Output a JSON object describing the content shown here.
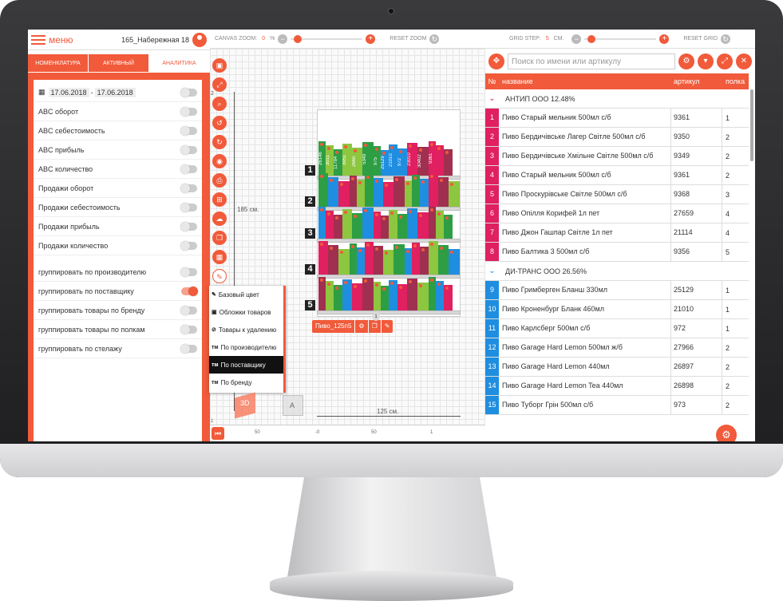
{
  "header": {
    "menu_label": "меню",
    "store_name": "165_Набережная 18"
  },
  "tabs": [
    "НОМЕНКЛАТУРА",
    "АКТИВНЫЙ",
    "АНАЛИТИКА"
  ],
  "date_from": "17.06.2018",
  "date_sep": "-",
  "date_to": "17.06.2018",
  "analytics_items": [
    {
      "label": "ABC оборот",
      "on": false
    },
    {
      "label": "ABC себестоимость",
      "on": false
    },
    {
      "label": "ABC прибыль",
      "on": false
    },
    {
      "label": "ABC количество",
      "on": false
    },
    {
      "label": "Продажи оборот",
      "on": false
    },
    {
      "label": "Продажи себестоимость",
      "on": false
    },
    {
      "label": "Продажи прибыль",
      "on": false
    },
    {
      "label": "Продажи количество",
      "on": false
    }
  ],
  "group_items": [
    {
      "label": "группировать по производителю",
      "on": false
    },
    {
      "label": "группировать по поставщику",
      "on": true
    },
    {
      "label": "группировать товары по бренду",
      "on": false
    },
    {
      "label": "группировать товары по полкам",
      "on": false
    },
    {
      "label": "группировать по стелажу",
      "on": false
    }
  ],
  "canvas": {
    "zoom_label": "CANVAS ZOOM:",
    "zoom_value": "0",
    "zoom_unit": "%",
    "reset_zoom": "RESET ZOOM",
    "height_label": "185 см.",
    "width_label": "125 см.",
    "plano_name": "Пиво_125п5",
    "badge": "1",
    "mark_2": "2"
  },
  "grid": {
    "step_label": "GRID STEP:",
    "step_value": "5",
    "step_unit": "СМ.",
    "reset_grid": "RESET GRID"
  },
  "color_menu": [
    "Базовый цвет",
    "Обложки товаров",
    "Товары к удалению",
    "По производителю",
    "По поставщику",
    "По бренду"
  ],
  "color_menu_prefix": [
    "",
    "",
    "",
    "тм",
    "тм",
    "тм"
  ],
  "cube_label": "3D",
  "cube_label_2": "A",
  "shelves": [
    "1",
    "2",
    "3",
    "4",
    "5"
  ],
  "shelf_products": [
    {
      "label": "26146",
      "color": "#2e9e44"
    },
    {
      "label": "3011",
      "color": "#8dc63f"
    },
    {
      "label": "11784",
      "color": "#2e9e44"
    },
    {
      "label": "3951",
      "color": "#8dc63f"
    },
    {
      "label": "2660",
      "color": "#8dc63f"
    },
    {
      "label": "5349",
      "color": "#2e9e44"
    },
    {
      "label": "975",
      "color": "#2e9e44"
    },
    {
      "label": "25129",
      "color": "#1f8ee0"
    },
    {
      "label": "21010",
      "color": "#1f8ee0"
    },
    {
      "label": "972",
      "color": "#1f8ee0"
    },
    {
      "label": "23010",
      "color": "#e02060"
    },
    {
      "label": "30402",
      "color": "#a03050"
    },
    {
      "label": "9361",
      "color": "#e02060"
    }
  ],
  "search_placeholder": "Поиск по имени или артикулу",
  "table_headers": [
    "№",
    "название",
    "артикул",
    "полка"
  ],
  "groups": [
    {
      "title": "АНТИП ООО 12.48%",
      "color": "#e02060",
      "rows": [
        {
          "n": "1",
          "name": "Пиво Старый мельник 500мл с/б",
          "art": "9361",
          "shelf": "1"
        },
        {
          "n": "2",
          "name": "Пиво Бердичівське Лагер Світле 500мл с/б",
          "art": "9350",
          "shelf": "2"
        },
        {
          "n": "3",
          "name": "Пиво Бердичівське Хмільне Світле 500мл с/б",
          "art": "9349",
          "shelf": "2"
        },
        {
          "n": "4",
          "name": "Пиво Старый мельник 500мл с/б",
          "art": "9361",
          "shelf": "2"
        },
        {
          "n": "5",
          "name": "Пиво Проскурівське Світле 500мл с/б",
          "art": "9368",
          "shelf": "3"
        },
        {
          "n": "6",
          "name": "Пиво Опілля Корифей 1л пет",
          "art": "27659",
          "shelf": "4"
        },
        {
          "n": "7",
          "name": "Пиво Джон Гашпар Світле 1л пет",
          "art": "21114",
          "shelf": "4"
        },
        {
          "n": "8",
          "name": "Пиво Балтика 3 500мл с/б",
          "art": "9356",
          "shelf": "5"
        }
      ]
    },
    {
      "title": "ДИ-ТРАНС ООО 26.56%",
      "color": "#1f8ee0",
      "rows": [
        {
          "n": "9",
          "name": "Пиво Гримберген Бланш 330мл",
          "art": "25129",
          "shelf": "1"
        },
        {
          "n": "10",
          "name": "Пиво Кроненбург Бланк 460мл",
          "art": "21010",
          "shelf": "1"
        },
        {
          "n": "11",
          "name": "Пиво Карлсберг 500мл с/б",
          "art": "972",
          "shelf": "1"
        },
        {
          "n": "12",
          "name": "Пиво Garage Hard Lemon 500мл ж/б",
          "art": "27966",
          "shelf": "2"
        },
        {
          "n": "13",
          "name": "Пиво Garage Hard Lemon 440мл",
          "art": "26897",
          "shelf": "2"
        },
        {
          "n": "14",
          "name": "Пиво Garage Hard Lemon Tea 440мл",
          "art": "26898",
          "shelf": "2"
        },
        {
          "n": "15",
          "name": "Пиво Туборг Грін 500мл с/б",
          "art": "973",
          "shelf": "2"
        }
      ]
    }
  ],
  "ruler": [
    "50",
    "-0",
    "50",
    "1",
    "150",
    "2",
    "250",
    "3"
  ],
  "ruler_left": "1"
}
